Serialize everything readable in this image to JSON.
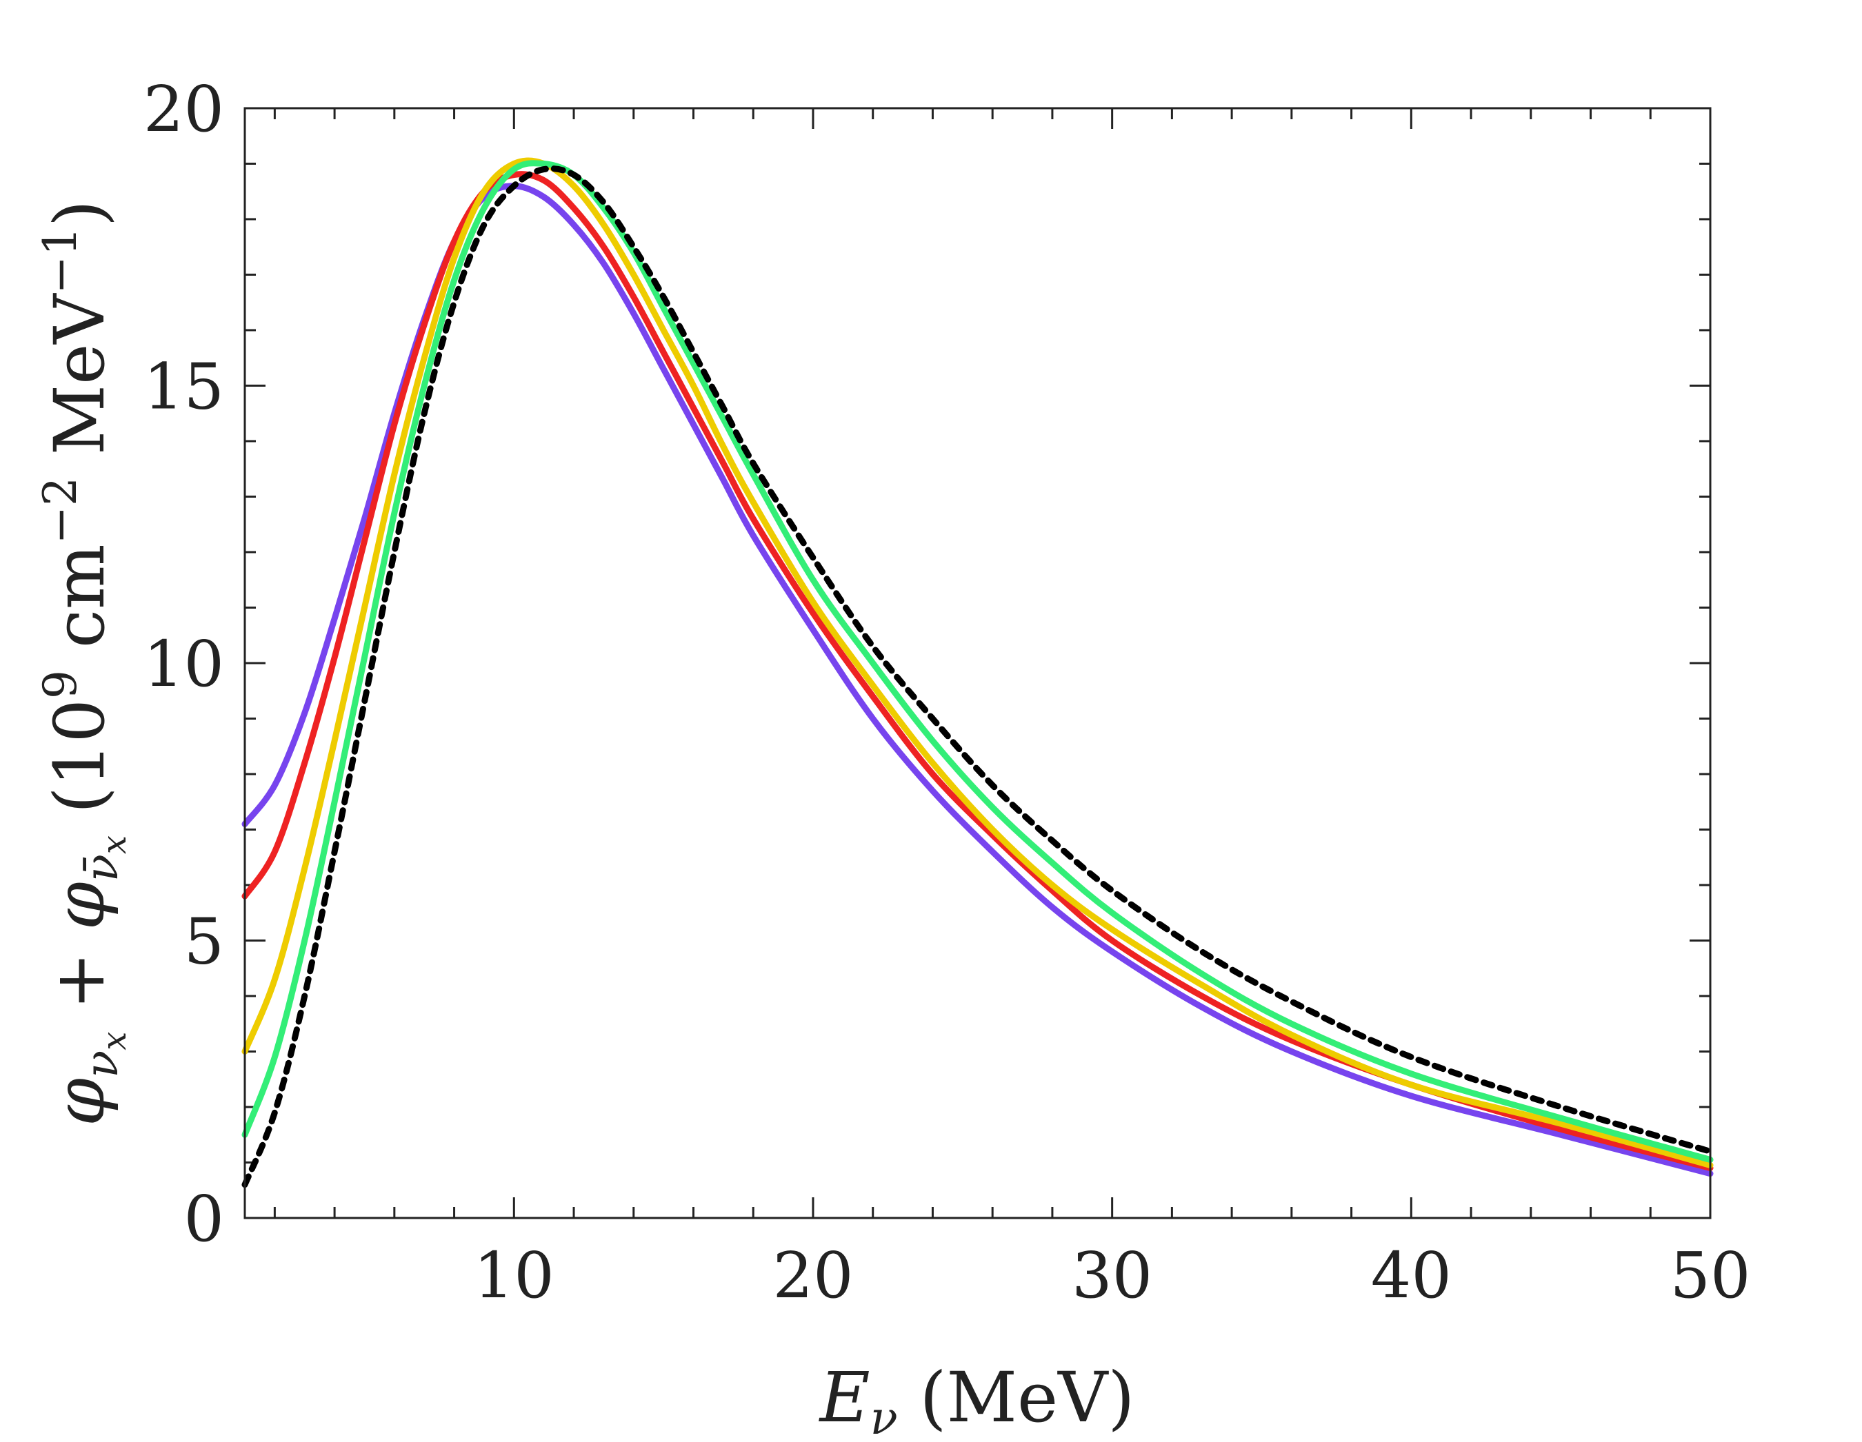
{
  "chart_data": {
    "type": "line",
    "title": "",
    "xlabel": "E_ν (MeV)",
    "ylabel": "φ_νx + φ_ν̄x (10^9 cm^-2 MeV^-1)",
    "xlabel_parts": {
      "symbol": "E",
      "subscript": "ν",
      "unit": " (MeV)"
    },
    "ylabel_parts": {
      "phi1": "φ",
      "sub1": "ν",
      "subsub1": "x",
      "plus": " + ",
      "phi2": "φ",
      "sub2": "ν̄",
      "subsub2": "x",
      "open": " (10",
      "exp1": "9",
      "mid": " cm",
      "exp2": "−2",
      "close": " MeV",
      "exp3": "−1",
      "end": ")"
    },
    "xlim": [
      1,
      50
    ],
    "ylim": [
      0,
      20
    ],
    "xticks": [
      10,
      20,
      30,
      40,
      50
    ],
    "yticks": [
      0,
      5,
      10,
      15,
      20
    ],
    "x_minor_step": 2,
    "y_minor_step": 1,
    "grid": false,
    "legend": "none",
    "series": [
      {
        "name": "purple",
        "color": "#7744ee",
        "style": "solid",
        "points": [
          [
            1,
            7.1
          ],
          [
            2,
            7.8
          ],
          [
            3,
            9.1
          ],
          [
            4,
            10.8
          ],
          [
            5,
            12.6
          ],
          [
            6,
            14.5
          ],
          [
            7,
            16.2
          ],
          [
            8,
            17.6
          ],
          [
            9,
            18.4
          ],
          [
            10,
            18.6
          ],
          [
            11,
            18.4
          ],
          [
            12,
            17.9
          ],
          [
            13,
            17.2
          ],
          [
            14,
            16.3
          ],
          [
            15,
            15.3
          ],
          [
            16,
            14.3
          ],
          [
            17,
            13.3
          ],
          [
            18,
            12.3
          ],
          [
            20,
            10.6
          ],
          [
            22,
            9.0
          ],
          [
            24,
            7.7
          ],
          [
            26,
            6.6
          ],
          [
            28,
            5.6
          ],
          [
            30,
            4.8
          ],
          [
            33,
            3.8
          ],
          [
            36,
            3.0
          ],
          [
            40,
            2.2
          ],
          [
            45,
            1.5
          ],
          [
            50,
            0.8
          ]
        ]
      },
      {
        "name": "red",
        "color": "#ee2222",
        "style": "solid",
        "points": [
          [
            1,
            5.8
          ],
          [
            2,
            6.6
          ],
          [
            3,
            8.2
          ],
          [
            4,
            10.1
          ],
          [
            5,
            12.2
          ],
          [
            6,
            14.3
          ],
          [
            7,
            16.1
          ],
          [
            8,
            17.6
          ],
          [
            9,
            18.5
          ],
          [
            10,
            18.8
          ],
          [
            11,
            18.7
          ],
          [
            12,
            18.2
          ],
          [
            13,
            17.5
          ],
          [
            14,
            16.6
          ],
          [
            15,
            15.6
          ],
          [
            16,
            14.6
          ],
          [
            17,
            13.6
          ],
          [
            18,
            12.6
          ],
          [
            20,
            10.9
          ],
          [
            22,
            9.4
          ],
          [
            24,
            8.0
          ],
          [
            26,
            6.9
          ],
          [
            28,
            5.9
          ],
          [
            30,
            5.0
          ],
          [
            33,
            4.0
          ],
          [
            36,
            3.2
          ],
          [
            40,
            2.4
          ],
          [
            45,
            1.6
          ],
          [
            50,
            0.9
          ]
        ]
      },
      {
        "name": "yellow",
        "color": "#eecc00",
        "style": "solid",
        "points": [
          [
            1,
            3.0
          ],
          [
            2,
            4.3
          ],
          [
            3,
            6.3
          ],
          [
            4,
            8.6
          ],
          [
            5,
            11.0
          ],
          [
            6,
            13.4
          ],
          [
            7,
            15.5
          ],
          [
            8,
            17.3
          ],
          [
            9,
            18.5
          ],
          [
            10,
            19.0
          ],
          [
            11,
            19.0
          ],
          [
            12,
            18.6
          ],
          [
            13,
            17.9
          ],
          [
            14,
            17.0
          ],
          [
            15,
            16.0
          ],
          [
            16,
            15.0
          ],
          [
            17,
            13.9
          ],
          [
            18,
            12.9
          ],
          [
            20,
            11.1
          ],
          [
            22,
            9.6
          ],
          [
            24,
            8.2
          ],
          [
            26,
            7.0
          ],
          [
            28,
            6.0
          ],
          [
            30,
            5.2
          ],
          [
            33,
            4.2
          ],
          [
            36,
            3.3
          ],
          [
            40,
            2.4
          ],
          [
            45,
            1.7
          ],
          [
            50,
            0.95
          ]
        ]
      },
      {
        "name": "green",
        "color": "#33ee77",
        "style": "solid",
        "points": [
          [
            1,
            1.5
          ],
          [
            2,
            2.9
          ],
          [
            3,
            5.0
          ],
          [
            4,
            7.5
          ],
          [
            5,
            10.1
          ],
          [
            6,
            12.7
          ],
          [
            7,
            15.0
          ],
          [
            8,
            16.9
          ],
          [
            9,
            18.2
          ],
          [
            10,
            18.9
          ],
          [
            11,
            19.0
          ],
          [
            12,
            18.8
          ],
          [
            13,
            18.2
          ],
          [
            14,
            17.4
          ],
          [
            15,
            16.4
          ],
          [
            16,
            15.4
          ],
          [
            17,
            14.4
          ],
          [
            18,
            13.4
          ],
          [
            20,
            11.5
          ],
          [
            22,
            10.0
          ],
          [
            24,
            8.6
          ],
          [
            26,
            7.4
          ],
          [
            28,
            6.4
          ],
          [
            30,
            5.5
          ],
          [
            33,
            4.4
          ],
          [
            36,
            3.5
          ],
          [
            40,
            2.6
          ],
          [
            45,
            1.8
          ],
          [
            50,
            1.05
          ]
        ]
      },
      {
        "name": "black-dotted",
        "color": "#000000",
        "style": "dotted",
        "points": [
          [
            1,
            0.6
          ],
          [
            2,
            1.9
          ],
          [
            3,
            4.0
          ],
          [
            4,
            6.6
          ],
          [
            5,
            9.3
          ],
          [
            6,
            12.0
          ],
          [
            7,
            14.5
          ],
          [
            8,
            16.5
          ],
          [
            9,
            17.9
          ],
          [
            10,
            18.6
          ],
          [
            11,
            18.9
          ],
          [
            12,
            18.8
          ],
          [
            13,
            18.3
          ],
          [
            14,
            17.5
          ],
          [
            15,
            16.6
          ],
          [
            16,
            15.6
          ],
          [
            17,
            14.6
          ],
          [
            18,
            13.6
          ],
          [
            20,
            11.9
          ],
          [
            22,
            10.3
          ],
          [
            24,
            9.0
          ],
          [
            26,
            7.8
          ],
          [
            28,
            6.8
          ],
          [
            30,
            5.9
          ],
          [
            33,
            4.8
          ],
          [
            36,
            3.9
          ],
          [
            40,
            2.9
          ],
          [
            45,
            2.0
          ],
          [
            50,
            1.2
          ]
        ]
      }
    ]
  }
}
